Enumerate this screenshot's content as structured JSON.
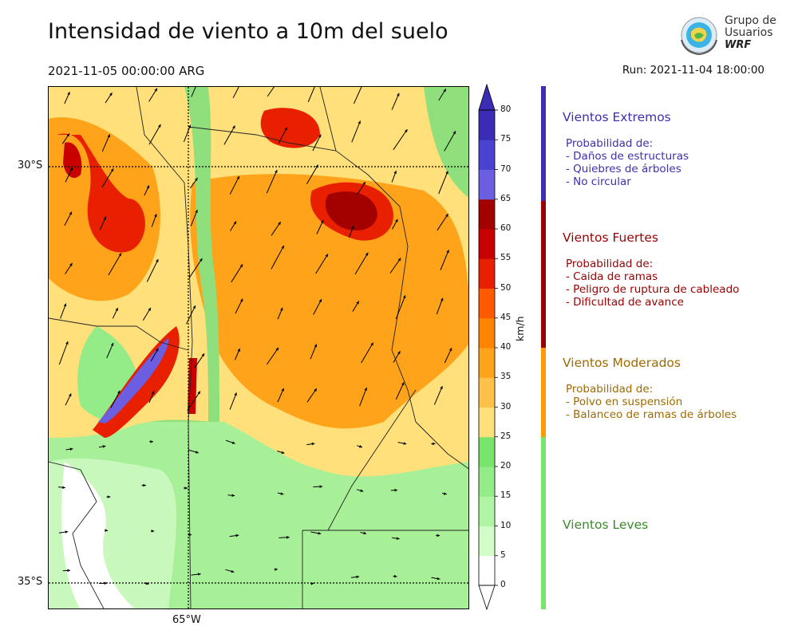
{
  "title": "Intensidad de viento a 10m del suelo",
  "valid_time": "2021-11-05 00:00:00 ARG",
  "run": "Run: 2021-11-04 18:00:00",
  "logo": {
    "line1": "Grupo de",
    "line2": "Usuarios",
    "line3": "WRF"
  },
  "map": {
    "lat_labels": [
      "30°S",
      "35°S"
    ],
    "lon_labels": [
      "65°W"
    ]
  },
  "colorbar": {
    "unit": "km/h",
    "ticks": [
      "0",
      "5",
      "10",
      "15",
      "20",
      "25",
      "30",
      "35",
      "40",
      "45",
      "50",
      "55",
      "60",
      "65",
      "70",
      "75",
      "80"
    ],
    "colors": [
      "#ffffff",
      "#d2fcc8",
      "#b0f5a4",
      "#94ec88",
      "#78e46c",
      "#ffe07a",
      "#ffc14a",
      "#ffa31a",
      "#ff8400",
      "#ff5a00",
      "#e82000",
      "#c80000",
      "#a30000",
      "#6b5ee0",
      "#4a43cf",
      "#3b2cb5"
    ],
    "extend_color": "#3b2cb5"
  },
  "categories": [
    {
      "title": "Vientos Extremos",
      "color": "#3f2fb0",
      "desc": [
        "Probabilidad de:",
        "- Daños de estructuras",
        "- Quiebres de árboles",
        "- No circular"
      ]
    },
    {
      "title": "Vientos Fuertes",
      "color": "#990000",
      "desc": [
        "Probabilidad de:",
        "- Caida de ramas",
        "- Peligro de ruptura de cableado",
        "- Dificultad de avance"
      ]
    },
    {
      "title": "Vientos Moderados",
      "color": "#a06a00",
      "desc": [
        "Probabilidad de:",
        "- Polvo en suspensión",
        "- Balanceo de ramas de árboles"
      ]
    },
    {
      "title": "Vientos Leves",
      "color": "#3a8a2a",
      "desc": []
    }
  ],
  "band_colors": [
    "#3f2fb0",
    "#990000",
    "#ff9a00",
    "#78e46c"
  ]
}
